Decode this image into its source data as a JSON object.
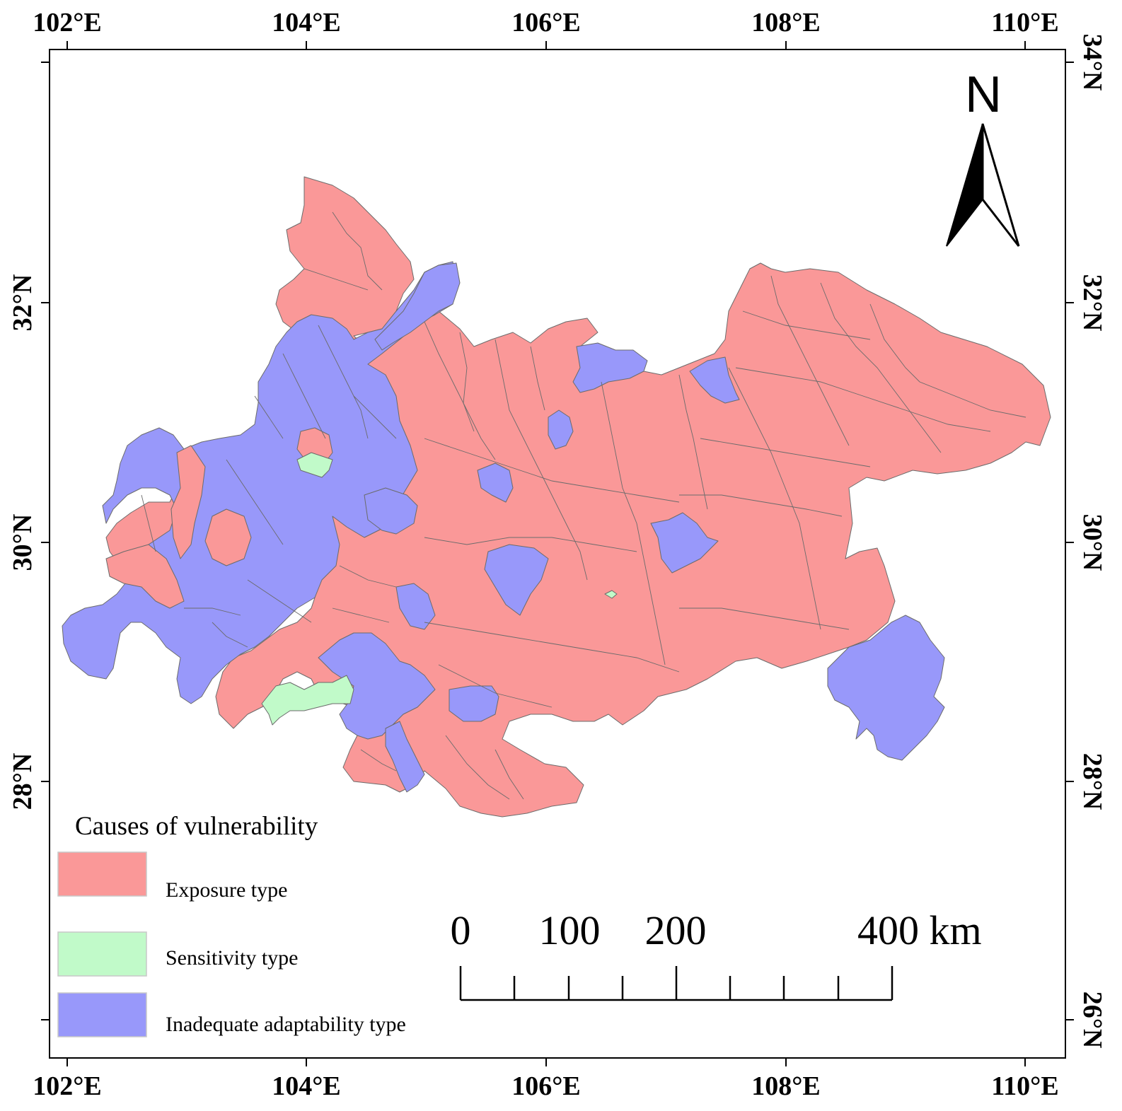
{
  "map": {
    "x_ticks": [
      "102°E",
      "104°E",
      "106°E",
      "108°E",
      "110°E"
    ],
    "y_ticks": [
      "34°N",
      "32°N",
      "30°N",
      "28°N",
      "26°N"
    ]
  },
  "legend": {
    "title": "Causes of vulnerability",
    "items": [
      {
        "label": "Exposure type",
        "color": "#fa9898"
      },
      {
        "label": "Sensitivity type",
        "color": "#c1fac9"
      },
      {
        "label": "Inadequate adaptability type",
        "color": "#9898fa"
      }
    ]
  },
  "scale_bar": {
    "labels": [
      "0",
      "100",
      "200",
      "400 km"
    ]
  },
  "north_arrow": {
    "label": "N"
  },
  "colors": {
    "exposure": "#fa9898",
    "sensitivity": "#c1fac9",
    "inadequate": "#9898fa",
    "boundary": "#6b6b6b"
  }
}
